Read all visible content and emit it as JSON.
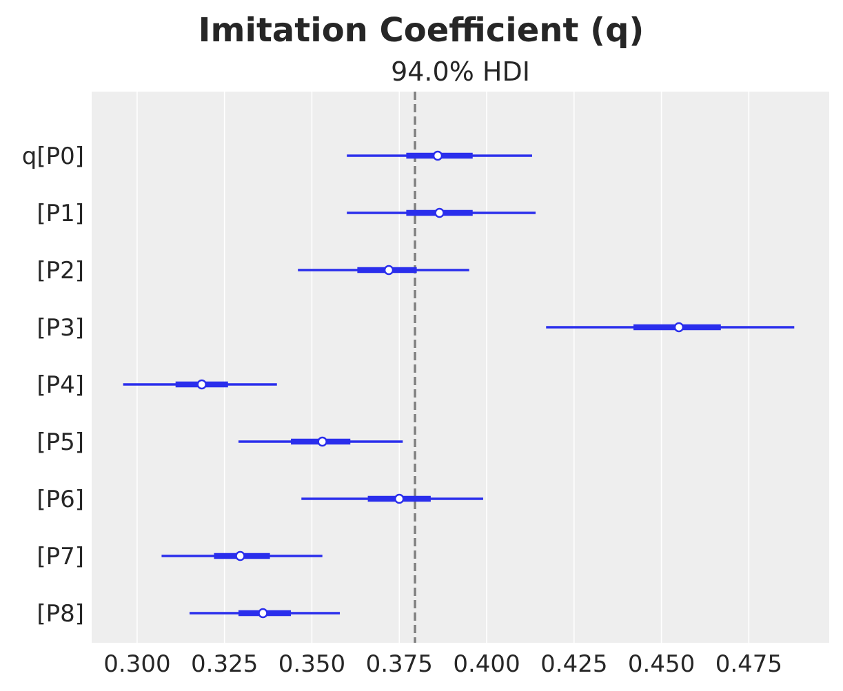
{
  "chart_data": {
    "type": "forest",
    "title": "Imitation Coefficient (q)",
    "subtitle": "94.0% HDI",
    "xlim": [
      0.287,
      0.498
    ],
    "xticks": [
      0.3,
      0.325,
      0.35,
      0.375,
      0.4,
      0.425,
      0.45,
      0.475
    ],
    "xtick_labels": [
      "0.300",
      "0.325",
      "0.350",
      "0.375",
      "0.400",
      "0.425",
      "0.450",
      "0.475"
    ],
    "reference_line": 0.3795,
    "grid": "vertical",
    "colors": {
      "series": "#2a2eec",
      "reference": "#808080",
      "background": "#eeeeee",
      "grid": "#ffffff"
    },
    "rows": [
      {
        "label": "q[P0]",
        "hdi94": [
          0.36,
          0.413
        ],
        "iqr": [
          0.377,
          0.396
        ],
        "median": 0.386
      },
      {
        "label": "[P1]",
        "hdi94": [
          0.36,
          0.414
        ],
        "iqr": [
          0.377,
          0.396
        ],
        "median": 0.3865
      },
      {
        "label": "[P2]",
        "hdi94": [
          0.346,
          0.395
        ],
        "iqr": [
          0.363,
          0.38
        ],
        "median": 0.372
      },
      {
        "label": "[P3]",
        "hdi94": [
          0.417,
          0.488
        ],
        "iqr": [
          0.442,
          0.467
        ],
        "median": 0.455
      },
      {
        "label": "[P4]",
        "hdi94": [
          0.296,
          0.34
        ],
        "iqr": [
          0.311,
          0.326
        ],
        "median": 0.3185
      },
      {
        "label": "[P5]",
        "hdi94": [
          0.329,
          0.376
        ],
        "iqr": [
          0.344,
          0.361
        ],
        "median": 0.353
      },
      {
        "label": "[P6]",
        "hdi94": [
          0.347,
          0.399
        ],
        "iqr": [
          0.366,
          0.384
        ],
        "median": 0.375
      },
      {
        "label": "[P7]",
        "hdi94": [
          0.307,
          0.353
        ],
        "iqr": [
          0.322,
          0.338
        ],
        "median": 0.3295
      },
      {
        "label": "[P8]",
        "hdi94": [
          0.315,
          0.358
        ],
        "iqr": [
          0.329,
          0.344
        ],
        "median": 0.336
      }
    ]
  }
}
